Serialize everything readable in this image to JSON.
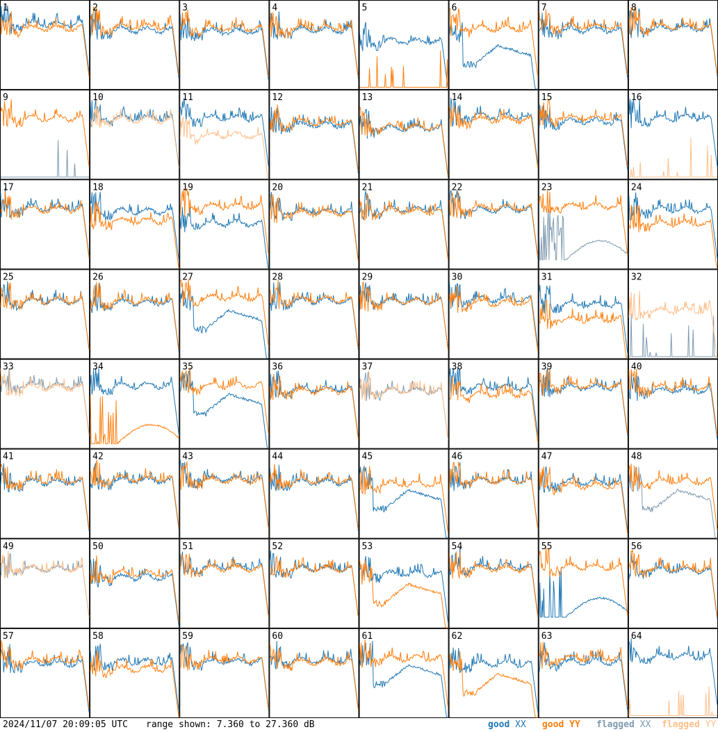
{
  "footer": {
    "timestamp": "2024/11/07 20:09:05 UTC",
    "range_text": "range shown: 7.360 to 27.360 dB"
  },
  "legend": [
    {
      "word": "good",
      "pol": "XX",
      "color": "#1f77b4"
    },
    {
      "word": "good",
      "pol": "YY",
      "color": "#ff7f0e"
    },
    {
      "word": "flagged",
      "pol": "XX",
      "color": "#7f9bb0"
    },
    {
      "word": "flagged",
      "pol": "YY",
      "color": "#ffbf8a"
    }
  ],
  "colors": {
    "good_xx": "#1f77b4",
    "good_yy": "#ff7f0e",
    "flagged_xx": "#7f9bb0",
    "flagged_yy": "#ffbf8a"
  },
  "chart_data": {
    "type": "line",
    "ylim": [
      7.36,
      27.36
    ],
    "yunit": "dB",
    "panels": [
      {
        "id": "1",
        "xx": "good",
        "yy": "good",
        "xxLevel": 0.75,
        "yyLevel": 0.7,
        "shape": "normal"
      },
      {
        "id": "2",
        "xx": "good",
        "yy": "good",
        "xxLevel": 0.68,
        "yyLevel": 0.72,
        "shape": "normal"
      },
      {
        "id": "3",
        "xx": "good",
        "yy": "good",
        "xxLevel": 0.66,
        "yyLevel": 0.7,
        "shape": "normal"
      },
      {
        "id": "4",
        "xx": "good",
        "yy": "good",
        "xxLevel": 0.68,
        "yyLevel": 0.7,
        "shape": "normal"
      },
      {
        "id": "5",
        "xx": "good",
        "yy": "good",
        "xxLevel": 0.55,
        "yyLevel": 0.02,
        "shape": "yySpikes"
      },
      {
        "id": "6",
        "xx": "good",
        "yy": "good",
        "xxLevel": 0.4,
        "yyLevel": 0.7,
        "shape": "xxDip"
      },
      {
        "id": "7",
        "xx": "good",
        "yy": "good",
        "xxLevel": 0.68,
        "yyLevel": 0.72,
        "shape": "normal"
      },
      {
        "id": "8",
        "xx": "good",
        "yy": "good",
        "xxLevel": 0.7,
        "yyLevel": 0.72,
        "shape": "normal"
      },
      {
        "id": "9",
        "xx": "flagged",
        "yy": "good",
        "xxLevel": 0.02,
        "yyLevel": 0.7,
        "shape": "xxSpikes"
      },
      {
        "id": "10",
        "xx": "good",
        "yy": "flagged",
        "xxLevel": 0.7,
        "yyLevel": 0.68,
        "shape": "normal"
      },
      {
        "id": "11",
        "xx": "good",
        "yy": "flagged",
        "xxLevel": 0.7,
        "yyLevel": 0.5,
        "shape": "normal"
      },
      {
        "id": "12",
        "xx": "good",
        "yy": "good",
        "xxLevel": 0.62,
        "yyLevel": 0.65,
        "shape": "normal"
      },
      {
        "id": "13",
        "xx": "good",
        "yy": "good",
        "xxLevel": 0.58,
        "yyLevel": 0.6,
        "shape": "normal"
      },
      {
        "id": "14",
        "xx": "good",
        "yy": "good",
        "xxLevel": 0.72,
        "yyLevel": 0.68,
        "shape": "normal"
      },
      {
        "id": "15",
        "xx": "good",
        "yy": "good",
        "xxLevel": 0.66,
        "yyLevel": 0.7,
        "shape": "normal"
      },
      {
        "id": "16",
        "xx": "good",
        "yy": "flagged",
        "xxLevel": 0.7,
        "yyLevel": 0.02,
        "shape": "yySpikes"
      },
      {
        "id": "17",
        "xx": "good",
        "yy": "good",
        "xxLevel": 0.7,
        "yyLevel": 0.68,
        "shape": "normal"
      },
      {
        "id": "18",
        "xx": "good",
        "yy": "good",
        "xxLevel": 0.66,
        "yyLevel": 0.55,
        "shape": "normal"
      },
      {
        "id": "19",
        "xx": "good",
        "yy": "good",
        "xxLevel": 0.52,
        "yyLevel": 0.72,
        "shape": "normal"
      },
      {
        "id": "20",
        "xx": "good",
        "yy": "good",
        "xxLevel": 0.66,
        "yyLevel": 0.64,
        "shape": "normal"
      },
      {
        "id": "21",
        "xx": "good",
        "yy": "good",
        "xxLevel": 0.68,
        "yyLevel": 0.66,
        "shape": "normal"
      },
      {
        "id": "22",
        "xx": "good",
        "yy": "good",
        "xxLevel": 0.68,
        "yyLevel": 0.7,
        "shape": "normal"
      },
      {
        "id": "23",
        "xx": "flagged",
        "yy": "good",
        "xxLevel": 0.1,
        "yyLevel": 0.72,
        "shape": "xxLowHump"
      },
      {
        "id": "24",
        "xx": "good",
        "yy": "good",
        "xxLevel": 0.68,
        "yyLevel": 0.52,
        "shape": "normal"
      },
      {
        "id": "25",
        "xx": "good",
        "yy": "good",
        "xxLevel": 0.66,
        "yyLevel": 0.66,
        "shape": "normal"
      },
      {
        "id": "26",
        "xx": "good",
        "yy": "good",
        "xxLevel": 0.64,
        "yyLevel": 0.66,
        "shape": "normal"
      },
      {
        "id": "27",
        "xx": "good",
        "yy": "good",
        "xxLevel": 0.45,
        "yyLevel": 0.7,
        "shape": "xxDip"
      },
      {
        "id": "28",
        "xx": "good",
        "yy": "good",
        "xxLevel": 0.66,
        "yyLevel": 0.68,
        "shape": "normal"
      },
      {
        "id": "29",
        "xx": "good",
        "yy": "good",
        "xxLevel": 0.66,
        "yyLevel": 0.66,
        "shape": "normal"
      },
      {
        "id": "30",
        "xx": "good",
        "yy": "good",
        "xxLevel": 0.68,
        "yyLevel": 0.64,
        "shape": "normal"
      },
      {
        "id": "31",
        "xx": "good",
        "yy": "good",
        "xxLevel": 0.62,
        "yyLevel": 0.45,
        "shape": "normal"
      },
      {
        "id": "32",
        "xx": "flagged",
        "yy": "flagged",
        "xxLevel": 0.02,
        "yyLevel": 0.55,
        "shape": "xxSpikes"
      },
      {
        "id": "33",
        "xx": "flagged",
        "yy": "flagged",
        "xxLevel": 0.72,
        "yyLevel": 0.7,
        "shape": "normal"
      },
      {
        "id": "34",
        "xx": "good",
        "yy": "good",
        "xxLevel": 0.72,
        "yyLevel": 0.05,
        "shape": "yyLowHump"
      },
      {
        "id": "35",
        "xx": "good",
        "yy": "good",
        "xxLevel": 0.52,
        "yyLevel": 0.72,
        "shape": "xxDip"
      },
      {
        "id": "36",
        "xx": "good",
        "yy": "good",
        "xxLevel": 0.68,
        "yyLevel": 0.66,
        "shape": "normal"
      },
      {
        "id": "37",
        "xx": "flagged",
        "yy": "flagged",
        "xxLevel": 0.66,
        "yyLevel": 0.66,
        "shape": "normal"
      },
      {
        "id": "38",
        "xx": "good",
        "yy": "good",
        "xxLevel": 0.7,
        "yyLevel": 0.62,
        "shape": "normal"
      },
      {
        "id": "39",
        "xx": "good",
        "yy": "good",
        "xxLevel": 0.7,
        "yyLevel": 0.72,
        "shape": "normal"
      },
      {
        "id": "40",
        "xx": "good",
        "yy": "good",
        "xxLevel": 0.66,
        "yyLevel": 0.7,
        "shape": "normal"
      },
      {
        "id": "41",
        "xx": "good",
        "yy": "good",
        "xxLevel": 0.64,
        "yyLevel": 0.66,
        "shape": "normal"
      },
      {
        "id": "42",
        "xx": "good",
        "yy": "good",
        "xxLevel": 0.66,
        "yyLevel": 0.68,
        "shape": "normal"
      },
      {
        "id": "43",
        "xx": "good",
        "yy": "good",
        "xxLevel": 0.68,
        "yyLevel": 0.66,
        "shape": "normal"
      },
      {
        "id": "44",
        "xx": "good",
        "yy": "good",
        "xxLevel": 0.64,
        "yyLevel": 0.66,
        "shape": "normal"
      },
      {
        "id": "45",
        "xx": "good",
        "yy": "good",
        "xxLevel": 0.45,
        "yyLevel": 0.62,
        "shape": "xxDip"
      },
      {
        "id": "46",
        "xx": "good",
        "yy": "good",
        "xxLevel": 0.66,
        "yyLevel": 0.66,
        "shape": "normal"
      },
      {
        "id": "47",
        "xx": "good",
        "yy": "good",
        "xxLevel": 0.64,
        "yyLevel": 0.6,
        "shape": "normal"
      },
      {
        "id": "48",
        "xx": "flagged",
        "yy": "good",
        "xxLevel": 0.45,
        "yyLevel": 0.65,
        "shape": "xxDip"
      },
      {
        "id": "49",
        "xx": "flagged",
        "yy": "flagged",
        "xxLevel": 0.68,
        "yyLevel": 0.68,
        "shape": "normal"
      },
      {
        "id": "50",
        "xx": "good",
        "yy": "good",
        "xxLevel": 0.58,
        "yyLevel": 0.62,
        "shape": "normal"
      },
      {
        "id": "51",
        "xx": "good",
        "yy": "good",
        "xxLevel": 0.7,
        "yyLevel": 0.68,
        "shape": "normal"
      },
      {
        "id": "52",
        "xx": "good",
        "yy": "good",
        "xxLevel": 0.68,
        "yyLevel": 0.68,
        "shape": "normal"
      },
      {
        "id": "53",
        "xx": "good",
        "yy": "good",
        "xxLevel": 0.62,
        "yyLevel": 0.4,
        "shape": "yyDip"
      },
      {
        "id": "54",
        "xx": "good",
        "yy": "good",
        "xxLevel": 0.7,
        "yyLevel": 0.68,
        "shape": "normal"
      },
      {
        "id": "55",
        "xx": "good",
        "yy": "good",
        "xxLevel": 0.12,
        "yyLevel": 0.7,
        "shape": "xxLowHump"
      },
      {
        "id": "56",
        "xx": "good",
        "yy": "good",
        "xxLevel": 0.66,
        "yyLevel": 0.68,
        "shape": "normal"
      },
      {
        "id": "57",
        "xx": "good",
        "yy": "good",
        "xxLevel": 0.62,
        "yyLevel": 0.66,
        "shape": "normal"
      },
      {
        "id": "58",
        "xx": "good",
        "yy": "good",
        "xxLevel": 0.64,
        "yyLevel": 0.56,
        "shape": "normal"
      },
      {
        "id": "59",
        "xx": "good",
        "yy": "good",
        "xxLevel": 0.64,
        "yyLevel": 0.66,
        "shape": "normal"
      },
      {
        "id": "60",
        "xx": "good",
        "yy": "good",
        "xxLevel": 0.66,
        "yyLevel": 0.64,
        "shape": "normal"
      },
      {
        "id": "61",
        "xx": "good",
        "yy": "good",
        "xxLevel": 0.5,
        "yyLevel": 0.68,
        "shape": "xxDip"
      },
      {
        "id": "62",
        "xx": "good",
        "yy": "good",
        "xxLevel": 0.62,
        "yyLevel": 0.4,
        "shape": "yyDip"
      },
      {
        "id": "63",
        "xx": "good",
        "yy": "good",
        "xxLevel": 0.64,
        "yyLevel": 0.68,
        "shape": "normal"
      },
      {
        "id": "64",
        "xx": "good",
        "yy": "flagged",
        "xxLevel": 0.7,
        "yyLevel": 0.02,
        "shape": "yySpikes"
      }
    ]
  }
}
